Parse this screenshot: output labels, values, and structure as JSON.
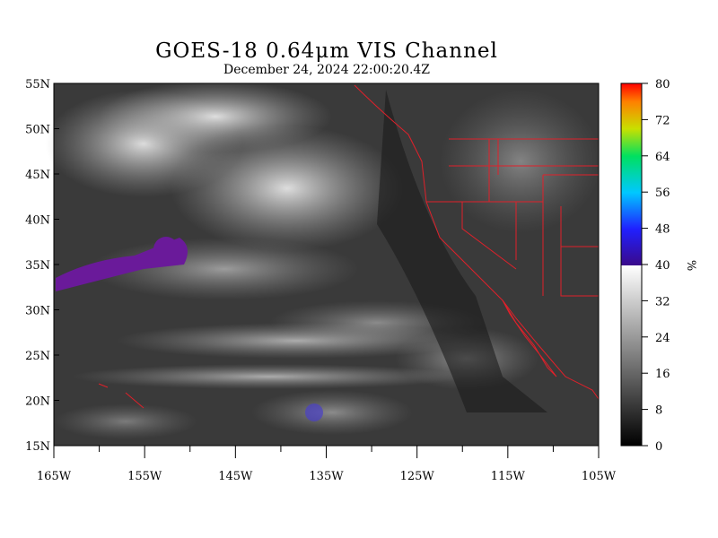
{
  "title": "GOES-18  0.64μm VIS Channel",
  "subtitle": "December 24,  2024 22:00:20.4Z",
  "lat_labels": [
    "55N",
    "50N",
    "45N",
    "40N",
    "35N",
    "30N",
    "25N",
    "20N",
    "15N"
  ],
  "lon_labels": [
    "165W",
    "155W",
    "145W",
    "135W",
    "125W",
    "115W",
    "105W"
  ],
  "colorbar": {
    "ticks": [
      "80",
      "72",
      "64",
      "56",
      "48",
      "40",
      "32",
      "24",
      "16",
      "8",
      "0"
    ],
    "unit": "%",
    "range": [
      0,
      80
    ]
  },
  "map": {
    "lon_range": [
      -165,
      -105
    ],
    "lat_range": [
      15,
      55
    ],
    "border_color": "#e0202a",
    "cloud_color": "#cfcfcf",
    "high_reflectance_color": "#6a1a9a"
  }
}
